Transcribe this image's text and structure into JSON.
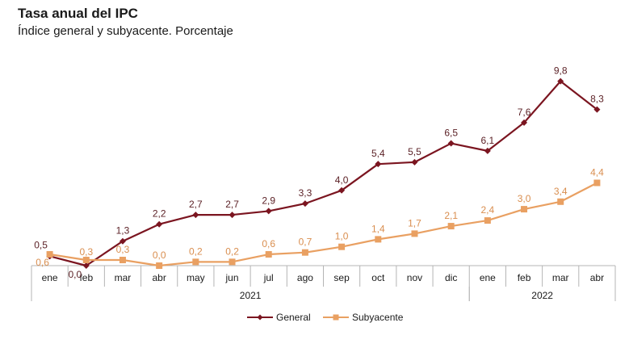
{
  "title": "Tasa anual del IPC",
  "subtitle": "Índice general y subyacente. Porcentaje",
  "colors": {
    "general": "#7b1520",
    "subyacente": "#e9a062",
    "axis": "#b4b4b4",
    "text": "#1a1a1a"
  },
  "chart_data": {
    "type": "line",
    "categories": [
      "ene",
      "feb",
      "mar",
      "abr",
      "may",
      "jun",
      "jul",
      "ago",
      "sep",
      "oct",
      "nov",
      "dic",
      "ene",
      "feb",
      "mar",
      "abr"
    ],
    "year_groups": [
      {
        "label": "2021",
        "start": 0,
        "end": 11
      },
      {
        "label": "2022",
        "start": 12,
        "end": 15
      }
    ],
    "series": [
      {
        "name": "General",
        "values": [
          0.5,
          0.0,
          1.3,
          2.2,
          2.7,
          2.7,
          2.9,
          3.3,
          4.0,
          5.4,
          5.5,
          6.5,
          6.1,
          7.6,
          9.8,
          8.3
        ],
        "labels": [
          "0,5",
          "0,0",
          "1,3",
          "2,2",
          "2,7",
          "2,7",
          "2,9",
          "3,3",
          "4,0",
          "5,4",
          "5,5",
          "6,5",
          "6,1",
          "7,6",
          "9,8",
          "8,3"
        ],
        "marker": "diamond"
      },
      {
        "name": "Subyacente",
        "values": [
          0.6,
          0.3,
          0.3,
          0.0,
          0.2,
          0.2,
          0.6,
          0.7,
          1.0,
          1.4,
          1.7,
          2.1,
          2.4,
          3.0,
          3.4,
          4.4
        ],
        "labels": [
          "0,6",
          "0,3",
          "0,3",
          "0,0",
          "0,2",
          "0,2",
          "0,6",
          "0,7",
          "1,0",
          "1,4",
          "1,7",
          "2,1",
          "2,4",
          "3,0",
          "3,4",
          "4,4"
        ],
        "marker": "square"
      }
    ],
    "ylim": [
      0,
      10
    ],
    "grid": false,
    "legend_position": "bottom"
  }
}
